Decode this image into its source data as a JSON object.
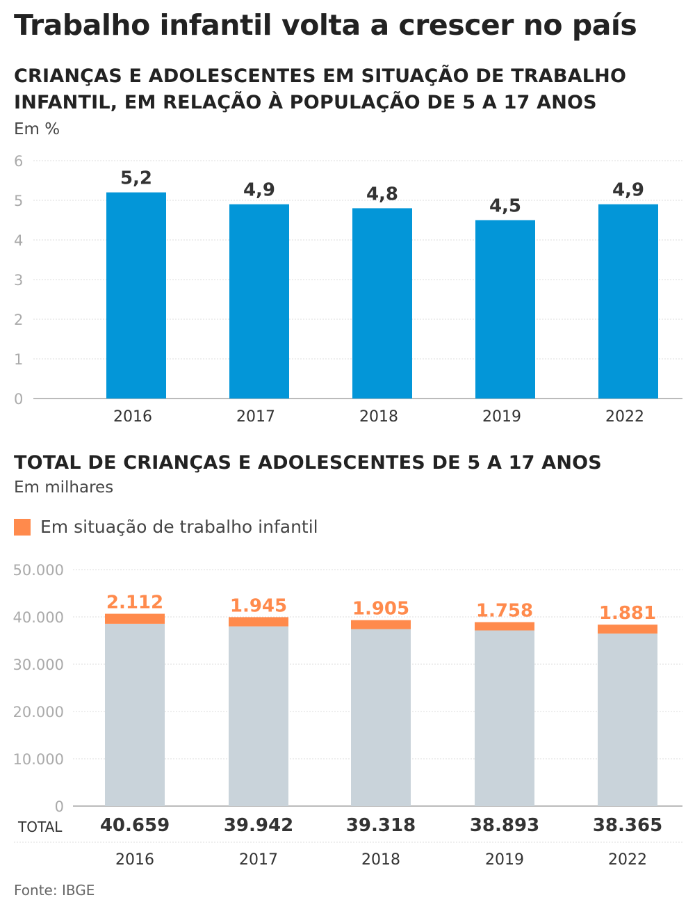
{
  "title": "Trabalho infantil volta a crescer no país",
  "source": "Fonte: IBGE",
  "colors": {
    "blue": "#0396d8",
    "orange": "#ff8a4c",
    "gray": "#c9d3da",
    "grid": "#dddddd",
    "axis": "#bbbbbb"
  },
  "chart_data": [
    {
      "type": "bar",
      "title": "CRIANÇAS E ADOLESCENTES EM SITUAÇÃO DE TRABALHO INFANTIL, EM RELAÇÃO À POPULAÇÃO DE 5 A 17 ANOS",
      "ylabel": "Em %",
      "categories": [
        "2016",
        "2017",
        "2018",
        "2019",
        "2022"
      ],
      "values": [
        5.2,
        4.9,
        4.8,
        4.5,
        4.9
      ],
      "value_labels": [
        "5,2",
        "4,9",
        "4,8",
        "4,5",
        "4,9"
      ],
      "ylim": [
        0,
        6
      ],
      "yticks": [
        0,
        1,
        2,
        3,
        4,
        5,
        6
      ],
      "ytick_labels": [
        "0",
        "1",
        "2",
        "3",
        "4",
        "5",
        "6"
      ],
      "grid": true
    },
    {
      "type": "bar",
      "title": "TOTAL DE CRIANÇAS E ADOLESCENTES DE 5 A 17 ANOS",
      "ylabel": "Em milhares",
      "legend": [
        "Em situação de trabalho infantil"
      ],
      "categories": [
        "2016",
        "2017",
        "2018",
        "2019",
        "2022"
      ],
      "series": [
        {
          "name": "Em situação de trabalho infantil",
          "values": [
            2112,
            1945,
            1905,
            1758,
            1881
          ],
          "labels": [
            "2.112",
            "1.945",
            "1.905",
            "1.758",
            "1.881"
          ]
        }
      ],
      "totals": [
        40659,
        39942,
        39318,
        38893,
        38365
      ],
      "total_labels": [
        "40.659",
        "39.942",
        "39.318",
        "38.893",
        "38.365"
      ],
      "total_row_label": "TOTAL",
      "ylim": [
        0,
        50000
      ],
      "yticks": [
        0,
        10000,
        20000,
        30000,
        40000,
        50000
      ],
      "ytick_labels": [
        "0",
        "10.000",
        "20.000",
        "30.000",
        "40.000",
        "50.000"
      ],
      "grid": true
    }
  ]
}
